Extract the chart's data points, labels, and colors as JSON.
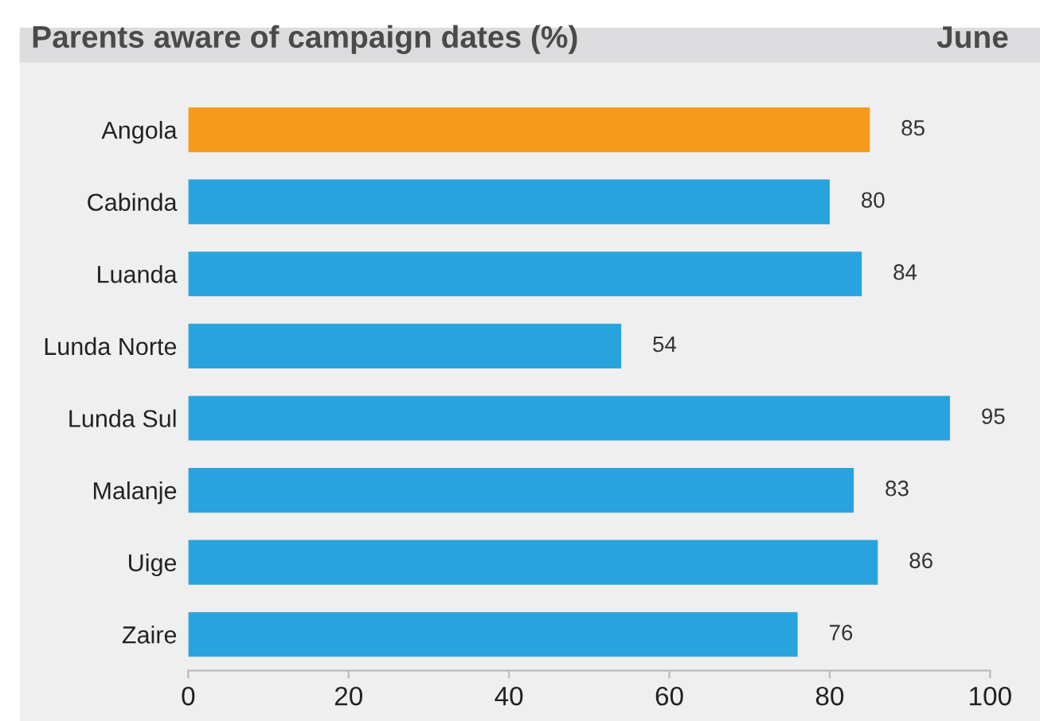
{
  "chart_data": {
    "type": "bar",
    "orientation": "horizontal",
    "title": "Parents aware of campaign dates (%)",
    "subtitle": "June",
    "categories": [
      "Angola",
      "Cabinda",
      "Luanda",
      "Lunda Norte",
      "Lunda Sul",
      "Malanje",
      "Uige",
      "Zaire"
    ],
    "values": [
      85,
      80,
      84,
      54,
      95,
      83,
      86,
      76
    ],
    "colors": [
      "#f7991c",
      "#29a3dd",
      "#29a3dd",
      "#29a3dd",
      "#29a3dd",
      "#29a3dd",
      "#29a3dd",
      "#29a3dd"
    ],
    "xlim": [
      0,
      100
    ],
    "xticks": [
      0,
      20,
      40,
      60,
      80,
      100
    ],
    "data_labels": true,
    "grid": false,
    "legend": false
  }
}
